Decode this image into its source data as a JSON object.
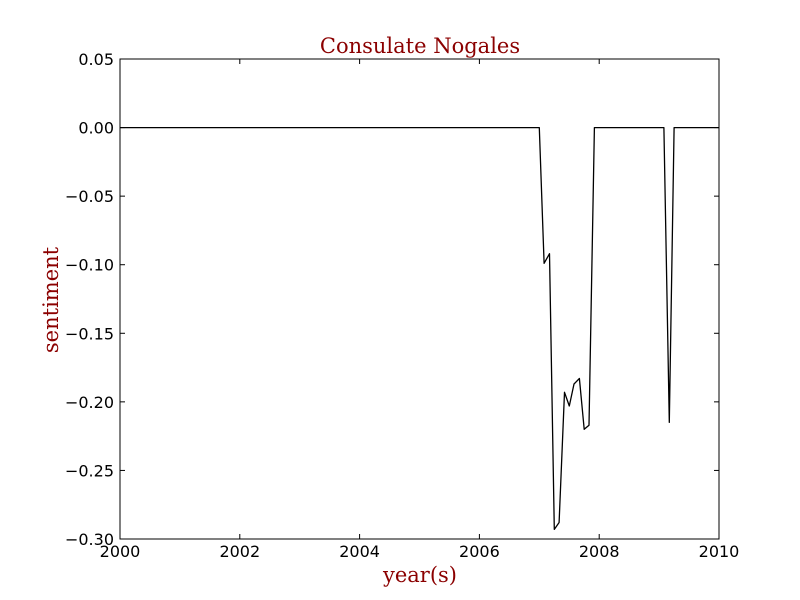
{
  "chart_data": {
    "type": "line",
    "title": "Consulate Nogales",
    "xlabel": "year(s)",
    "ylabel": "sentiment",
    "xlim": [
      2000,
      2010
    ],
    "ylim": [
      -0.3,
      0.05
    ],
    "x_ticks": [
      2000,
      2002,
      2004,
      2006,
      2008,
      2010
    ],
    "x_tick_labels": [
      "2000",
      "2002",
      "2004",
      "2006",
      "2008",
      "2010"
    ],
    "y_ticks": [
      0.05,
      0.0,
      -0.05,
      -0.1,
      -0.15,
      -0.2,
      -0.25,
      -0.3
    ],
    "y_tick_labels": [
      "0.05",
      "0.00",
      "−0.05",
      "−0.10",
      "−0.15",
      "−0.20",
      "−0.25",
      "−0.30"
    ],
    "grid": false,
    "line_color": "#000000",
    "title_color": "#8b0000",
    "series": [
      {
        "x": [
          2000.0,
          2007.0,
          2007.08,
          2007.17,
          2007.25,
          2007.33,
          2007.42,
          2007.5,
          2007.58,
          2007.67,
          2007.75,
          2007.83,
          2007.92,
          2008.0,
          2009.08,
          2009.17,
          2009.25,
          2010.0
        ],
        "y": [
          0.0,
          0.0,
          -0.099,
          -0.092,
          -0.293,
          -0.288,
          -0.193,
          -0.203,
          -0.187,
          -0.183,
          -0.22,
          -0.217,
          0.0,
          0.0,
          0.0,
          -0.215,
          0.0,
          0.0
        ]
      }
    ]
  }
}
